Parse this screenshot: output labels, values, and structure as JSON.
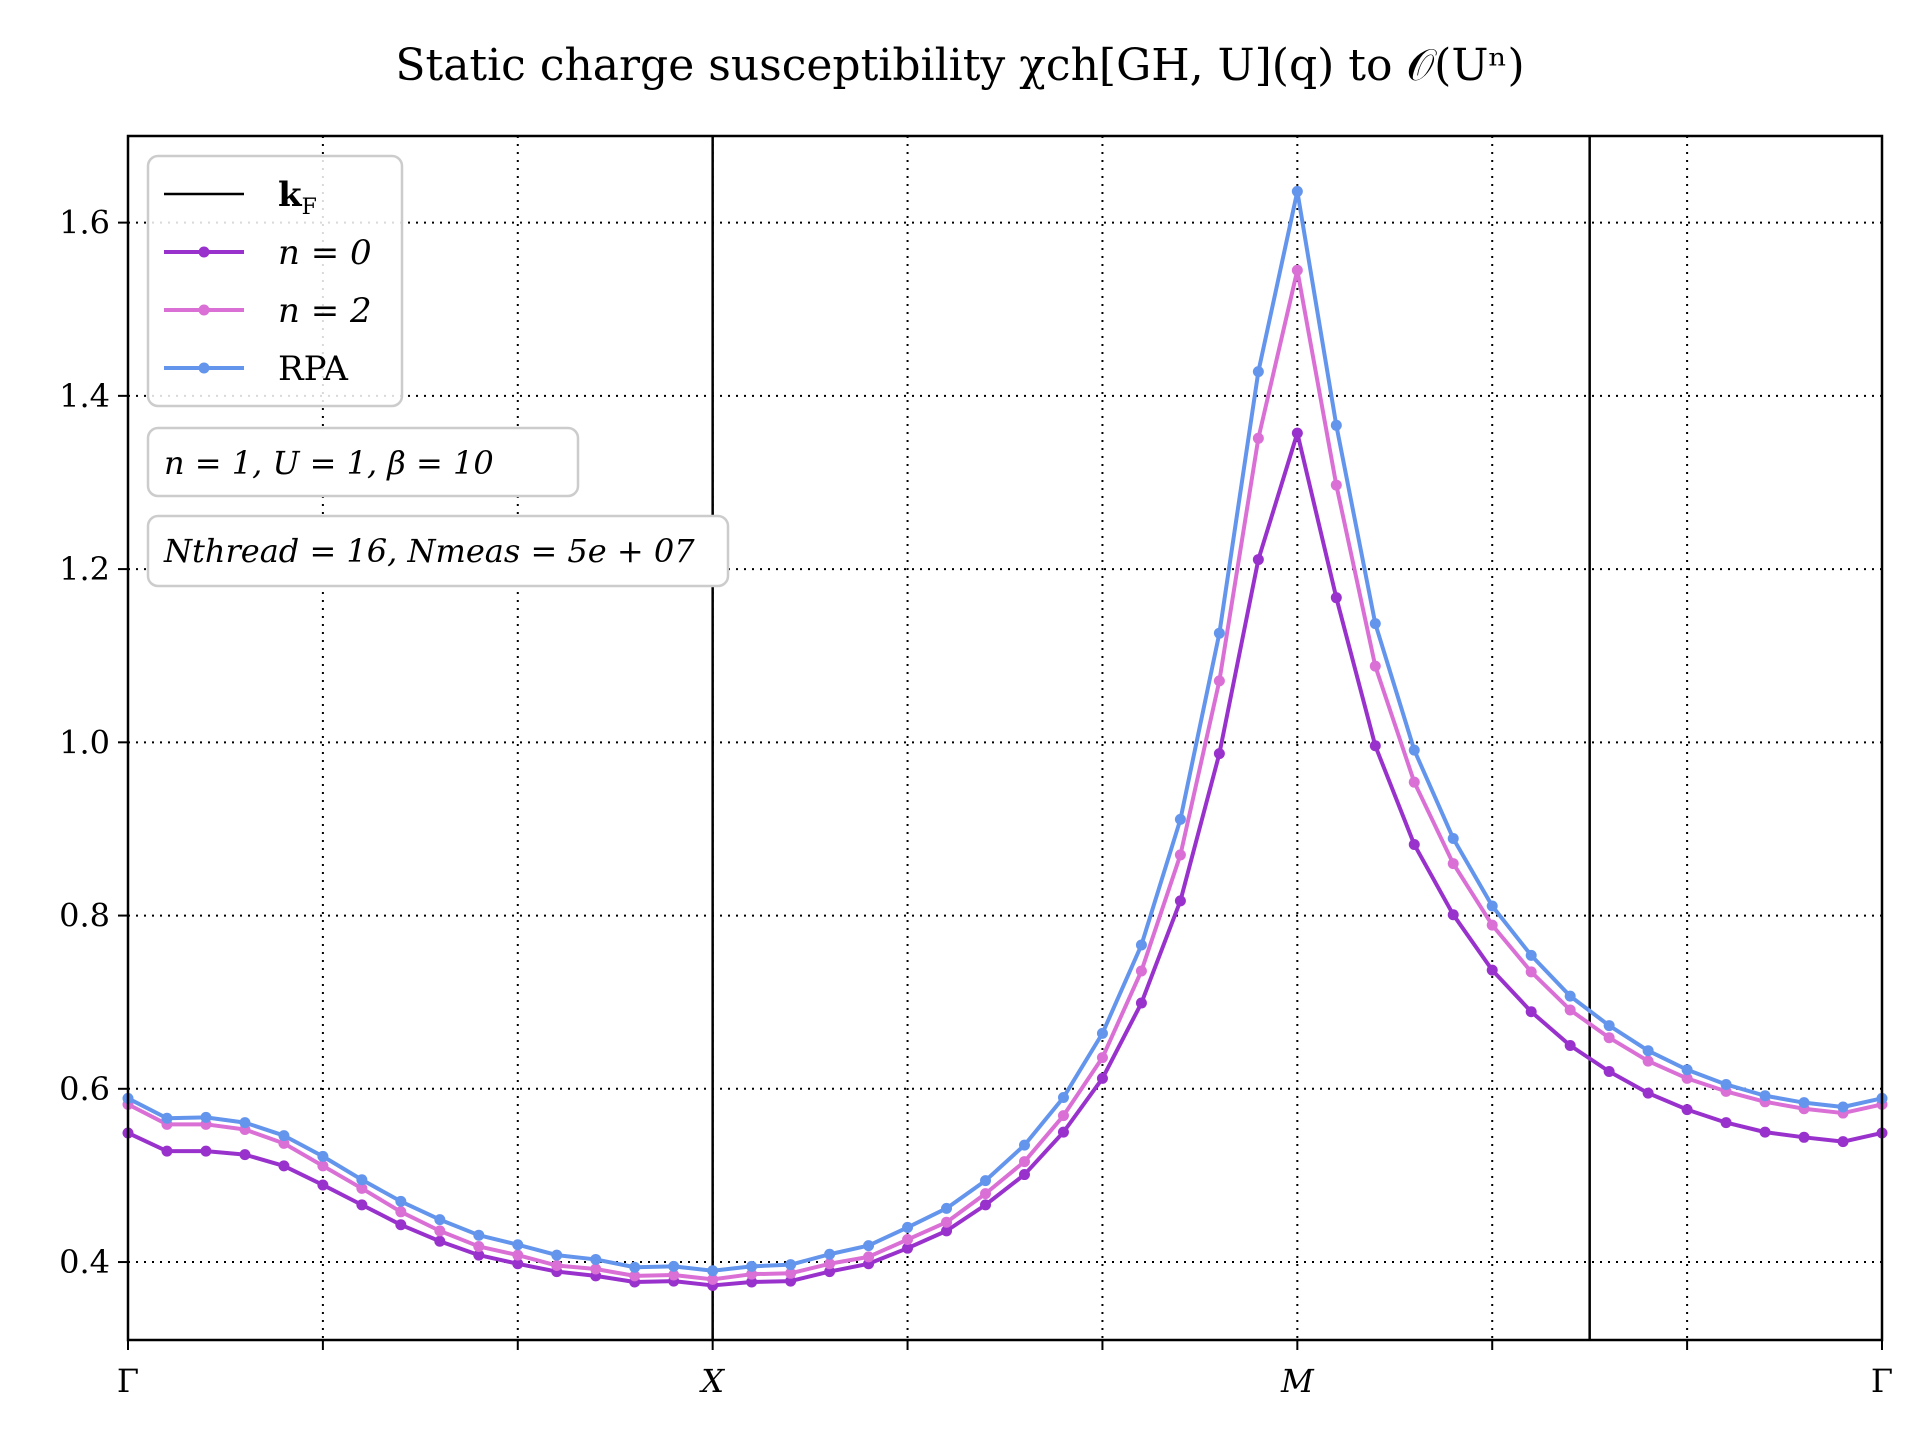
{
  "chart_data": {
    "type": "line",
    "title": "Static charge susceptibility χch[GH, U](q) to 𝒪(Uⁿ)",
    "xlabel": "",
    "ylabel": "",
    "x_tick_labels": [
      "Γ",
      "X",
      "M",
      "Γ"
    ],
    "x_tick_positions": [
      0,
      30,
      60,
      90
    ],
    "x_minor_positions": [
      10,
      20,
      40,
      50,
      70,
      80
    ],
    "y_ticks": [
      0.4,
      0.6,
      0.8,
      1.0,
      1.2,
      1.4,
      1.6
    ],
    "ylim": [
      0.31,
      1.7
    ],
    "xlim": [
      0,
      90
    ],
    "grid": true,
    "kF_positions": [
      30,
      75
    ],
    "legend_position": "upper-left",
    "x": [
      0,
      2,
      4,
      6,
      8,
      10,
      12,
      14,
      16,
      18,
      20,
      22,
      24,
      26,
      28,
      30,
      32,
      34,
      36,
      38,
      40,
      42,
      44,
      46,
      48,
      50,
      52,
      54,
      56,
      58,
      60,
      62,
      64,
      66,
      68,
      70,
      72,
      74,
      76,
      78,
      80,
      82,
      84,
      86,
      88,
      90
    ],
    "series": [
      {
        "name": "n = 0",
        "color": "#9932CC",
        "values": [
          0.549,
          0.528,
          0.528,
          0.524,
          0.511,
          0.489,
          0.466,
          0.443,
          0.424,
          0.408,
          0.398,
          0.389,
          0.384,
          0.377,
          0.378,
          0.373,
          0.377,
          0.378,
          0.389,
          0.398,
          0.416,
          0.436,
          0.466,
          0.501,
          0.55,
          0.612,
          0.699,
          0.817,
          0.987,
          1.211,
          1.357,
          1.167,
          0.996,
          0.882,
          0.801,
          0.737,
          0.689,
          0.65,
          0.62,
          0.595,
          0.576,
          0.561,
          0.55,
          0.544,
          0.539,
          0.549
        ]
      },
      {
        "name": "n = 2",
        "color": "#DA70D6",
        "values": [
          0.582,
          0.559,
          0.559,
          0.553,
          0.537,
          0.511,
          0.485,
          0.458,
          0.436,
          0.418,
          0.408,
          0.396,
          0.392,
          0.384,
          0.385,
          0.38,
          0.386,
          0.387,
          0.398,
          0.406,
          0.426,
          0.446,
          0.479,
          0.516,
          0.569,
          0.636,
          0.736,
          0.87,
          1.071,
          1.351,
          1.545,
          1.297,
          1.088,
          0.954,
          0.86,
          0.789,
          0.735,
          0.691,
          0.659,
          0.632,
          0.612,
          0.597,
          0.585,
          0.577,
          0.572,
          0.582
        ]
      },
      {
        "name": "RPA",
        "color": "#6495ED",
        "values": [
          0.589,
          0.566,
          0.567,
          0.561,
          0.546,
          0.522,
          0.495,
          0.47,
          0.449,
          0.431,
          0.42,
          0.408,
          0.403,
          0.394,
          0.395,
          0.39,
          0.395,
          0.397,
          0.409,
          0.419,
          0.44,
          0.462,
          0.494,
          0.535,
          0.59,
          0.664,
          0.766,
          0.911,
          1.126,
          1.428,
          1.636,
          1.366,
          1.137,
          0.991,
          0.889,
          0.811,
          0.754,
          0.707,
          0.673,
          0.644,
          0.622,
          0.605,
          0.592,
          0.584,
          0.579,
          0.589
        ]
      }
    ],
    "legend": {
      "kf_label": "kF",
      "entries": [
        "kF",
        "n = 0",
        "n = 2",
        "RPA"
      ]
    },
    "annotations": [
      "n = 1, U = 1, β = 10",
      "Nthread = 16, Nmeas = 5e + 07"
    ]
  }
}
